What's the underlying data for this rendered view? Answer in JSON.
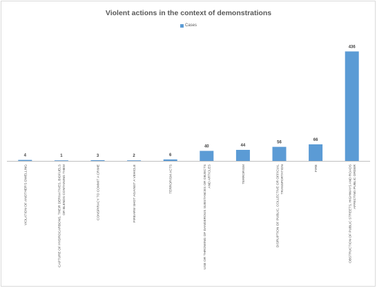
{
  "chart_data": {
    "type": "bar",
    "title": "Violent actions in the context of demonstrations",
    "legend": {
      "position": "top",
      "entries": [
        "Cases"
      ]
    },
    "colors": {
      "bar": "#5b9bd5",
      "axis": "#bfbfbf",
      "text": "#595959",
      "label": "#404040"
    },
    "ylim": [
      0,
      440
    ],
    "grid": false,
    "categories": [
      [
        "VIOLATION OF ANOTHER'S DWELLING"
      ],
      [
        "CAPTURE OF HYDROCARBONS, THEIR DERIVATIVES, BIOFUELS",
        "OR BLENDS CONTAINING THEM"
      ],
      [
        "CONSPIRACY TO COMMIT A CRIME"
      ],
      [
        "FIREARM SHOT AGAINST A VEHICLE"
      ],
      [
        "TERRORISM ACTS"
      ],
      [
        "USE OR THROWING OF DANGEROUS SUBSTANCES OR OBJECTS",
        "AND ARTICLES"
      ],
      [
        "TERRORISM"
      ],
      [
        "DISRUPTION OF PUBLIC, COLLECTIVE OR OFFICIAL",
        "TRANSPORTATION"
      ],
      [
        "FIRE"
      ],
      [
        "OBSTRUCTION OF PUBLIC STREETS, HIGHWAYS AND ROADS",
        "AFFECTING PUBLIC ORDER"
      ]
    ],
    "series": [
      {
        "name": "Cases",
        "values": [
          4,
          1,
          3,
          2,
          6,
          40,
          44,
          56,
          66,
          436
        ]
      }
    ]
  }
}
